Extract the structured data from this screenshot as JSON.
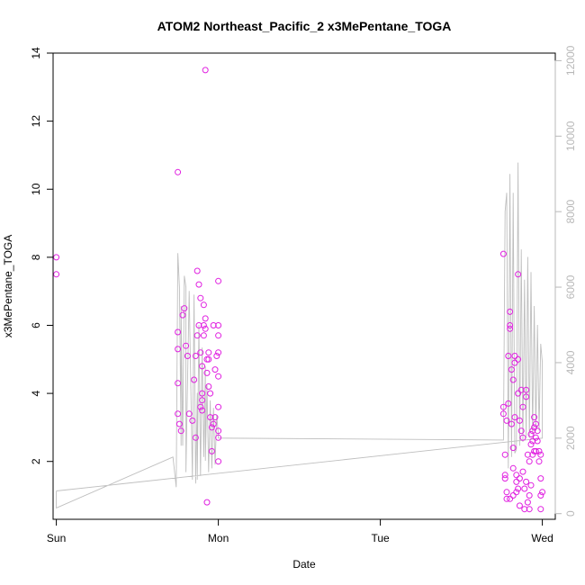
{
  "chart_data": {
    "type": "scatter",
    "title": "ATOM2 Northeast_Pacific_2 x3MePentane_TOGA",
    "xlabel": "Date",
    "ylabel": "x3MePentane_TOGA",
    "x_ticks": [
      {
        "value": 0,
        "label": "Sun"
      },
      {
        "value": 1,
        "label": "Mon"
      },
      {
        "value": 2,
        "label": "Tue"
      },
      {
        "value": 3,
        "label": "Wed"
      }
    ],
    "xlim": [
      -0.02,
      3.08
    ],
    "ylim": [
      0.3,
      14.0
    ],
    "y_ticks": [
      2,
      4,
      6,
      8,
      10,
      12,
      14
    ],
    "y2lim": [
      -150,
      12200
    ],
    "y2_ticks": [
      0,
      2000,
      4000,
      6000,
      8000,
      10000,
      12000
    ],
    "colors": {
      "points": "#e020e0",
      "altitude_line": "#bfbfbf",
      "axis": "#000000",
      "secondary_axis": "#b8b8b8"
    },
    "series": [
      {
        "kind": "points",
        "x": [
          0.0,
          0.0,
          0.75,
          0.75,
          0.75,
          0.75,
          0.75,
          0.76,
          0.77,
          0.78,
          0.79,
          0.8,
          0.81,
          0.82,
          0.84,
          0.85,
          0.86,
          0.86,
          0.87,
          0.87,
          0.88,
          0.88,
          0.89,
          0.89,
          0.89,
          0.9,
          0.9,
          0.9,
          0.9,
          0.91,
          0.91,
          0.91,
          0.92,
          0.92,
          0.92,
          0.93,
          0.93,
          0.93,
          0.94,
          0.94,
          0.94,
          0.95,
          0.95,
          0.96,
          0.96,
          0.97,
          0.97,
          0.98,
          0.98,
          0.99,
          1.0,
          1.0,
          1.0,
          1.0,
          1.0,
          1.0,
          1.0,
          1.0,
          1.0,
          2.76,
          2.76,
          2.76,
          2.77,
          2.77,
          2.77,
          2.78,
          2.78,
          2.78,
          2.79,
          2.79,
          2.8,
          2.8,
          2.8,
          2.8,
          2.81,
          2.81,
          2.82,
          2.82,
          2.82,
          2.82,
          2.83,
          2.83,
          2.83,
          2.84,
          2.84,
          2.84,
          2.85,
          2.85,
          2.85,
          2.85,
          2.86,
          2.86,
          2.86,
          2.87,
          2.87,
          2.88,
          2.88,
          2.88,
          2.89,
          2.89,
          2.9,
          2.9,
          2.9,
          2.91,
          2.91,
          2.92,
          2.92,
          2.92,
          2.93,
          2.93,
          2.93,
          2.94,
          2.94,
          2.94,
          2.95,
          2.95,
          2.95,
          2.96,
          2.96,
          2.96,
          2.97,
          2.97,
          2.98,
          2.98,
          2.99,
          2.99,
          2.99,
          2.99,
          3.0
        ],
        "y": [
          8.0,
          7.5,
          10.5,
          5.8,
          5.3,
          4.3,
          3.4,
          3.1,
          2.9,
          6.3,
          6.5,
          5.4,
          5.1,
          3.4,
          3.2,
          4.4,
          2.7,
          5.1,
          5.7,
          7.6,
          7.2,
          6.0,
          5.2,
          6.8,
          3.6,
          3.5,
          3.8,
          4.0,
          4.8,
          6.0,
          6.6,
          5.7,
          6.2,
          5.9,
          13.5,
          5.0,
          4.6,
          0.8,
          5.2,
          5.0,
          4.2,
          4.0,
          3.3,
          2.3,
          3.0,
          6.0,
          3.1,
          3.3,
          4.7,
          5.1,
          2.7,
          2.0,
          2.9,
          3.6,
          4.5,
          5.2,
          5.7,
          6.0,
          7.3,
          8.1,
          3.6,
          3.4,
          2.2,
          1.6,
          1.5,
          1.1,
          0.9,
          3.2,
          3.7,
          5.1,
          6.4,
          6.0,
          5.9,
          0.9,
          4.7,
          3.1,
          4.4,
          2.4,
          1.8,
          1.0,
          5.1,
          4.9,
          3.3,
          1.1,
          1.4,
          1.6,
          7.5,
          5.0,
          4.0,
          1.2,
          3.2,
          1.5,
          0.7,
          2.9,
          4.1,
          3.6,
          2.7,
          1.7,
          1.2,
          0.6,
          4.1,
          3.9,
          1.4,
          2.2,
          0.8,
          2.0,
          1.0,
          0.6,
          2.8,
          2.5,
          1.3,
          2.9,
          2.6,
          2.2,
          3.3,
          3.0,
          2.3,
          3.1,
          2.7,
          2.3,
          2.9,
          2.6,
          2.3,
          2.0,
          2.2,
          1.5,
          1.0,
          0.6,
          1.1
        ]
      },
      {
        "kind": "altitude_line",
        "axis": "secondary",
        "x": [
          0.0,
          0.0,
          0.72,
          0.74,
          0.75,
          0.76,
          0.77,
          0.77,
          0.78,
          0.79,
          0.8,
          0.8,
          0.82,
          0.84,
          0.85,
          0.86,
          0.87,
          0.87,
          0.88,
          0.89,
          0.9,
          0.91,
          0.92,
          0.92,
          0.93,
          0.94,
          0.95,
          0.96,
          0.97,
          0.98,
          0.99,
          1.0,
          1.0,
          2.76,
          2.77,
          2.78,
          2.79,
          2.8,
          2.81,
          2.82,
          2.83,
          2.84,
          2.85,
          2.86,
          2.87,
          2.88,
          2.89,
          2.9,
          2.91,
          2.92,
          2.93,
          2.94,
          2.95,
          2.96,
          2.97,
          2.98,
          2.99,
          3.0,
          3.0,
          0.0
        ],
        "y": [
          600,
          150,
          1500,
          700,
          6900,
          6000,
          1800,
          5500,
          1800,
          6300,
          6000,
          1100,
          5900,
          900,
          5800,
          800,
          3200,
          900,
          5000,
          1000,
          4400,
          1500,
          3900,
          1400,
          3400,
          1100,
          3000,
          1200,
          2800,
          1300,
          2600,
          2100,
          2000,
          1950,
          8000,
          8500,
          1200,
          9000,
          1500,
          8500,
          1600,
          1700,
          9300,
          1800,
          7000,
          1900,
          6200,
          2000,
          6800,
          2000,
          6400,
          2100,
          5500,
          2200,
          5000,
          2200,
          4500,
          4000,
          2000,
          600
        ]
      }
    ]
  }
}
